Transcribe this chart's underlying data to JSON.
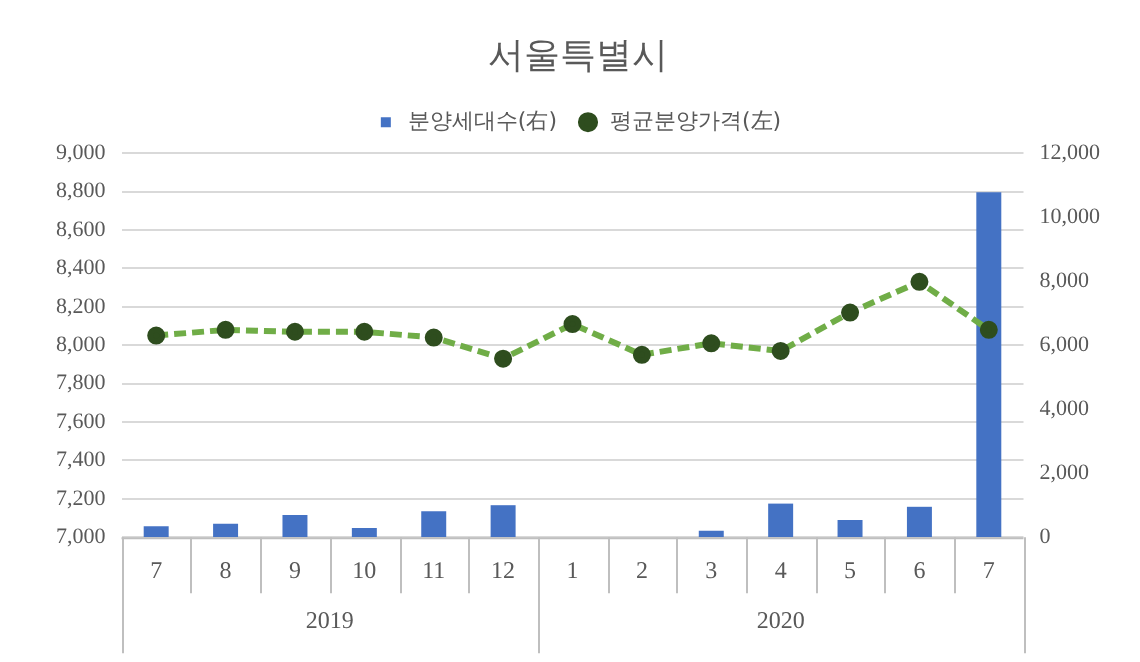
{
  "chart_data": {
    "type": "bar",
    "title": "서울특별시",
    "categories": [
      "7",
      "8",
      "9",
      "10",
      "11",
      "12",
      "1",
      "2",
      "3",
      "4",
      "5",
      "6",
      "7"
    ],
    "series": [
      {
        "name": "분양세대수(右)",
        "axis": "y2",
        "color": "#4472c4",
        "values": [
          340,
          420,
          690,
          290,
          810,
          1000,
          0,
          0,
          200,
          1050,
          540,
          950,
          10780
        ]
      },
      {
        "name": "평균분양가격(左)",
        "type": "line",
        "color": "#70ad47",
        "marker": "circle",
        "line_style": "dashed",
        "values": [
          8050,
          8080,
          8070,
          8070,
          8040,
          7930,
          8110,
          7950,
          8010,
          7970,
          8170,
          8330,
          8080
        ]
      }
    ],
    "annotations": [
      "2019",
      "2020"
    ],
    "ylim": [
      7000,
      9000
    ],
    "yticks": [
      {
        "value": 7000,
        "label": "7,000"
      },
      {
        "value": 7200,
        "label": "7,200"
      },
      {
        "value": 7400,
        "label": "7,400"
      },
      {
        "value": 7600,
        "label": "7,600"
      },
      {
        "value": 7800,
        "label": "7,800"
      },
      {
        "value": 8000,
        "label": "8,000"
      },
      {
        "value": 8200,
        "label": "8,200"
      },
      {
        "value": 8400,
        "label": "8,400"
      },
      {
        "value": 8600,
        "label": "8,600"
      },
      {
        "value": 8800,
        "label": "8,800"
      },
      {
        "value": 9000,
        "label": "9,000"
      }
    ],
    "y2lim": [
      0,
      12000
    ],
    "y2ticks": [
      0,
      {
        "value": 2000,
        "label": "2,000"
      },
      {
        "value": 4000,
        "label": "4,000"
      },
      {
        "value": 6000,
        "label": "6,000"
      },
      {
        "value": 8000,
        "label": "8,000"
      },
      {
        "value": 10000,
        "label": "10,000"
      },
      {
        "value": 12000,
        "label": "12,000"
      }
    ],
    "grid": "y",
    "legend": "top"
  }
}
